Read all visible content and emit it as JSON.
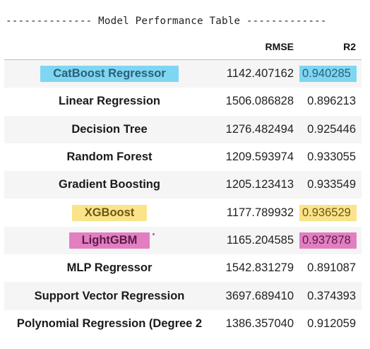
{
  "title": "-------------- Model Performance Table -------------",
  "headers": {
    "model": "",
    "rmse": "RMSE",
    "r2": "R2"
  },
  "highlight_colors": {
    "cyan": "#7fd6f2",
    "yellow": "#fbe38a",
    "pink": "#e27fc0"
  },
  "rows": [
    {
      "model": "CatBoost Regressor",
      "rmse": "1142.407162",
      "r2": "0.940285",
      "highlight": "cyan"
    },
    {
      "model": "Linear Regression",
      "rmse": "1506.086828",
      "r2": "0.896213",
      "highlight": ""
    },
    {
      "model": "Decision Tree",
      "rmse": "1276.482494",
      "r2": "0.925446",
      "highlight": ""
    },
    {
      "model": "Random Forest",
      "rmse": "1209.593974",
      "r2": "0.933055",
      "highlight": ""
    },
    {
      "model": "Gradient Boosting",
      "rmse": "1205.123413",
      "r2": "0.933549",
      "highlight": ""
    },
    {
      "model": "XGBoost",
      "rmse": "1177.789932",
      "r2": "0.936529",
      "highlight": "yellow"
    },
    {
      "model": "LightGBM",
      "rmse": "1165.204585",
      "r2": "0.937878",
      "highlight": "pink"
    },
    {
      "model": "MLP Regressor",
      "rmse": "1542.831279",
      "r2": "0.891087",
      "highlight": ""
    },
    {
      "model": "Support Vector Regression",
      "rmse": "3697.689410",
      "r2": "0.374393",
      "highlight": ""
    },
    {
      "model": "Polynomial Regression (Degree 2",
      "rmse": "1386.357040",
      "r2": "0.912059",
      "highlight": ""
    }
  ]
}
